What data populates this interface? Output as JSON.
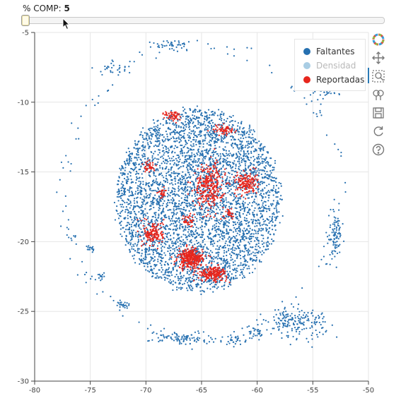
{
  "slider": {
    "title": "% COMP:",
    "value": "5"
  },
  "colors": {
    "faltantes": "#2670b0",
    "densidad": "#a9cde4",
    "reportadas": "#e7261d",
    "grid": "#e6e6e6",
    "axis": "#444444"
  },
  "legend": {
    "position": "top-right",
    "items": [
      {
        "label": "Faltantes",
        "color": "#2670b0",
        "muted": false
      },
      {
        "label": "Densidad",
        "color": "#a9cde4",
        "muted": true
      },
      {
        "label": "Reportadas",
        "color": "#e7261d",
        "muted": false
      }
    ]
  },
  "toolbar": {
    "tools": [
      {
        "name": "bokeh-logo-icon"
      },
      {
        "name": "pan-icon"
      },
      {
        "name": "box-zoom-icon"
      },
      {
        "name": "wheel-zoom-icon"
      },
      {
        "name": "save-icon"
      },
      {
        "name": "reset-icon"
      },
      {
        "name": "help-icon"
      }
    ]
  },
  "chart_data": {
    "type": "scatter",
    "title": "",
    "xlabel": "",
    "ylabel": "",
    "xlim": [
      -80,
      -50
    ],
    "ylim": [
      -30,
      -5
    ],
    "x_ticks": [
      -80,
      -75,
      -70,
      -65,
      -60,
      -55,
      -50
    ],
    "y_ticks": [
      -5,
      -10,
      -15,
      -20,
      -25,
      -30
    ],
    "grid": true,
    "series": [
      {
        "name": "Faltantes",
        "color": "#2670b0",
        "clusters": [
          {
            "cx": -65.3,
            "cy": -17.0,
            "rx": 7.5,
            "ry": 6.6,
            "n": 4200
          },
          {
            "cx": -53.0,
            "cy": -19.5,
            "rx": 0.6,
            "ry": 1.8,
            "n": 90
          },
          {
            "cx": -56.5,
            "cy": -25.8,
            "rx": 2.8,
            "ry": 1.0,
            "n": 180
          },
          {
            "cx": -66.8,
            "cy": -26.9,
            "rx": 2.8,
            "ry": 0.5,
            "n": 90
          },
          {
            "cx": -67.5,
            "cy": -5.9,
            "rx": 2.0,
            "ry": 0.4,
            "n": 40
          },
          {
            "cx": -73.0,
            "cy": -7.6,
            "rx": 1.5,
            "ry": 0.5,
            "n": 30
          },
          {
            "cx": -53.8,
            "cy": -9.3,
            "rx": 1.4,
            "ry": 0.5,
            "n": 30
          },
          {
            "cx": -72.0,
            "cy": -24.5,
            "rx": 0.5,
            "ry": 0.3,
            "n": 25
          },
          {
            "cx": -75.0,
            "cy": -20.5,
            "rx": 0.3,
            "ry": 0.3,
            "n": 15
          },
          {
            "cx": -74.0,
            "cy": -22.5,
            "rx": 0.3,
            "ry": 0.3,
            "n": 15
          },
          {
            "cx": -62.0,
            "cy": -27.0,
            "rx": 1.0,
            "ry": 0.4,
            "n": 30
          },
          {
            "cx": -60.0,
            "cy": -26.6,
            "rx": 0.8,
            "ry": 0.4,
            "n": 25
          }
        ],
        "ring": {
          "cx": -65.0,
          "cy": -16.5,
          "r": 12.5,
          "n": 140
        }
      },
      {
        "name": "Reportadas",
        "color": "#e7261d",
        "clusters": [
          {
            "cx": -66.0,
            "cy": -21.2,
            "rx": 1.1,
            "ry": 0.7,
            "n": 320
          },
          {
            "cx": -64.0,
            "cy": -22.3,
            "rx": 1.3,
            "ry": 0.5,
            "n": 200
          },
          {
            "cx": -64.3,
            "cy": -16.0,
            "rx": 1.3,
            "ry": 1.6,
            "n": 300
          },
          {
            "cx": -61.0,
            "cy": -15.8,
            "rx": 1.0,
            "ry": 0.8,
            "n": 160
          },
          {
            "cx": -69.3,
            "cy": -19.4,
            "rx": 0.9,
            "ry": 0.9,
            "n": 150
          },
          {
            "cx": -67.5,
            "cy": -11.0,
            "rx": 0.8,
            "ry": 0.4,
            "n": 60
          },
          {
            "cx": -63.0,
            "cy": -12.0,
            "rx": 1.0,
            "ry": 0.4,
            "n": 60
          },
          {
            "cx": -69.7,
            "cy": -14.6,
            "rx": 0.5,
            "ry": 0.4,
            "n": 40
          },
          {
            "cx": -68.5,
            "cy": -16.5,
            "rx": 0.4,
            "ry": 0.4,
            "n": 30
          },
          {
            "cx": -66.2,
            "cy": -18.5,
            "rx": 0.4,
            "ry": 0.5,
            "n": 35
          },
          {
            "cx": -62.5,
            "cy": -18.0,
            "rx": 0.4,
            "ry": 0.4,
            "n": 25
          }
        ]
      }
    ]
  }
}
